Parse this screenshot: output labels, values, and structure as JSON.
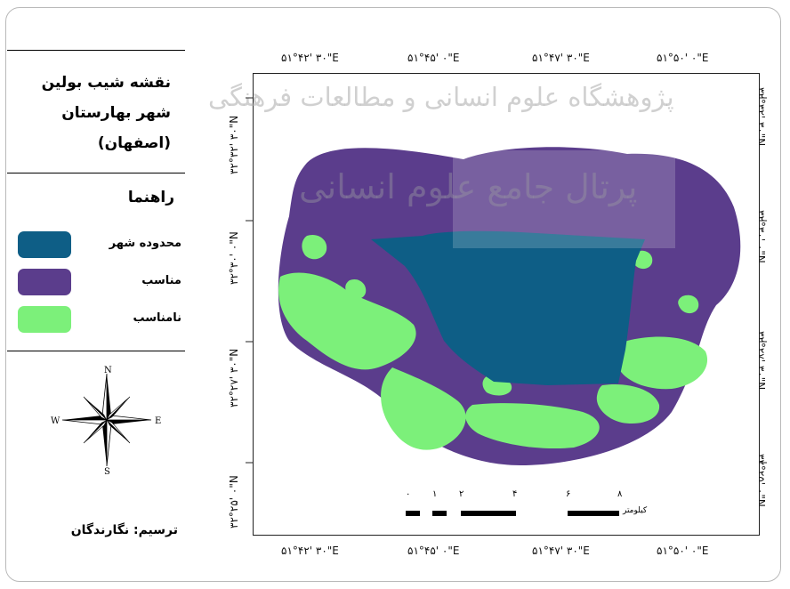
{
  "title_lines": [
    "نقشه شیب بولین",
    "شهر بهارستان",
    "(اصفهان)"
  ],
  "legend": {
    "heading": "راهنما",
    "items": [
      {
        "label": "محدوده شهر",
        "color": "#0e5e86"
      },
      {
        "label": "مناسب",
        "color": "#5b3d8c"
      },
      {
        "label": "نامناسب",
        "color": "#7cf07a"
      }
    ]
  },
  "compass": {
    "n": "N",
    "s": "S",
    "w": "W",
    "e": "E"
  },
  "credit": "ترسیم: نگارندگان",
  "top_coords": [
    "۵۱°۴۲' ۳۰\"E",
    "۵۱°۴۵' ۰\"E",
    "۵۱°۴۷' ۳۰\"E",
    "۵۱°۵۰' ۰\"E"
  ],
  "bottom_coords": [
    "۵۱°۴۲' ۳۰\"E",
    "۵۱°۴۵' ۰\"E",
    "۵۱°۴۷' ۳۰\"E",
    "۵۱°۵۰' ۰\"E"
  ],
  "left_coords": [
    "۳۲°۳۲' ۳۰\"N",
    "۳۲°۳۰' ۰\"N",
    "۳۲°۲۷' ۳۰\"N",
    "۳۲°۲۵' ۰\"N"
  ],
  "right_coords": [
    "۳۲°۳۲' ۳۰\"N",
    "۳۲°۳۰' ۰\"N",
    "۳۲°۲۷' ۳۰\"N",
    "۳۲°۲۵' ۰\"N"
  ],
  "scale": {
    "ticks": [
      "۱",
      "۰",
      "۲",
      "۴",
      "۶",
      "۸"
    ],
    "unit": "کیلومتر"
  },
  "watermarks": [
    "پژوهشگاه علوم انسانی و مطالعات فرهنگی",
    "پرتال جامع علوم انسانی"
  ]
}
